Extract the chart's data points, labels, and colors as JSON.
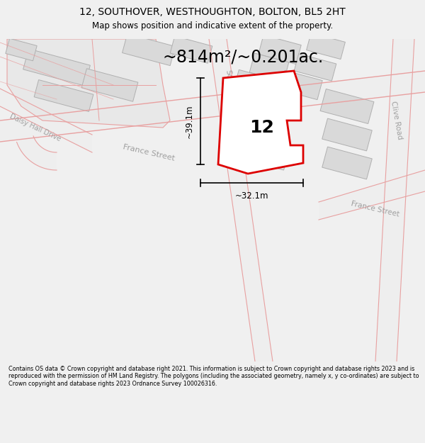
{
  "title_line1": "12, SOUTHOVER, WESTHOUGHTON, BOLTON, BL5 2HT",
  "title_line2": "Map shows position and indicative extent of the property.",
  "area_text": "~814m²/~0.201ac.",
  "property_number": "12",
  "dim_vertical": "~39.1m",
  "dim_horizontal": "~32.1m",
  "footer_text": "Contains OS data © Crown copyright and database right 2021. This information is subject to Crown copyright and database rights 2023 and is reproduced with the permission of HM Land Registry. The polygons (including the associated geometry, namely x, y co-ordinates) are subject to Crown copyright and database rights 2023 Ordnance Survey 100026316.",
  "bg_color": "#f0f0f0",
  "map_bg_color": "#ffffff",
  "property_color": "#dd0000",
  "building_fill": "#d9d9d9",
  "building_edge": "#b0b0b0",
  "road_fill": "#f0f0f0",
  "pink_line_color": "#e8a0a0",
  "road_gray_fill": "#e8e8e8",
  "street_label_color": "#a0a0a0"
}
